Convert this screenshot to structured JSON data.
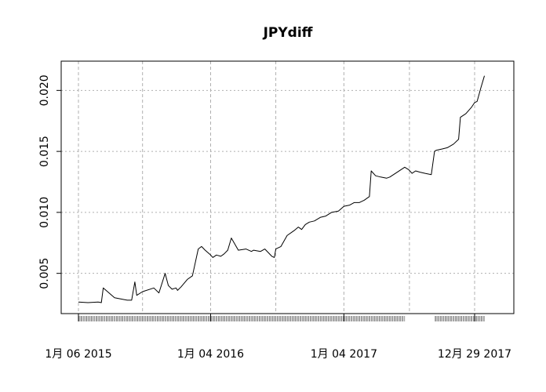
{
  "chart_data": {
    "type": "line",
    "title": "JPYdiff",
    "xlabel": "",
    "ylabel": "",
    "grid": true,
    "x_ticks": [
      {
        "label": "1月 06 2015",
        "date": "2015-01-06",
        "major": true
      },
      {
        "label": "",
        "date": "2015-07-01",
        "major": false
      },
      {
        "label": "1月 04 2016",
        "date": "2016-01-04",
        "major": true
      },
      {
        "label": "",
        "date": "2016-07-01",
        "major": false
      },
      {
        "label": "1月 04 2017",
        "date": "2017-01-04",
        "major": true
      },
      {
        "label": "",
        "date": "2017-07-03",
        "major": false
      },
      {
        "label": "12月 29 2017",
        "date": "2017-12-29",
        "major": true
      }
    ],
    "y_ticks": [
      0.005,
      0.01,
      0.015,
      0.02
    ],
    "y_tick_labels": [
      "0.005",
      "0.010",
      "0.015",
      "0.020"
    ],
    "xlim": [
      "2015-01-06",
      "2018-02-01"
    ],
    "ylim": [
      0.0017,
      0.0224
    ],
    "series": [
      {
        "line_color": "#000000",
        "x": [
          "2015-01-06",
          "2015-02-01",
          "2015-03-01",
          "2015-03-10",
          "2015-03-15",
          "2015-04-15",
          "2015-05-20",
          "2015-06-01",
          "2015-06-10",
          "2015-06-15",
          "2015-07-01",
          "2015-08-01",
          "2015-08-15",
          "2015-09-01",
          "2015-09-10",
          "2015-09-20",
          "2015-10-01",
          "2015-10-05",
          "2015-10-15",
          "2015-11-01",
          "2015-11-15",
          "2015-12-01",
          "2015-12-10",
          "2015-12-20",
          "2016-01-04",
          "2016-01-10",
          "2016-01-20",
          "2016-02-01",
          "2016-02-10",
          "2016-02-20",
          "2016-03-01",
          "2016-03-20",
          "2016-04-10",
          "2016-04-25",
          "2016-05-01",
          "2016-05-20",
          "2016-06-01",
          "2016-06-20",
          "2016-06-27",
          "2016-07-01",
          "2016-07-15",
          "2016-08-01",
          "2016-08-20",
          "2016-09-01",
          "2016-09-10",
          "2016-09-20",
          "2016-10-01",
          "2016-10-15",
          "2016-11-01",
          "2016-11-15",
          "2016-12-01",
          "2016-12-20",
          "2017-01-04",
          "2017-01-20",
          "2017-02-01",
          "2017-02-15",
          "2017-03-01",
          "2017-03-15",
          "2017-03-20",
          "2017-04-01",
          "2017-04-15",
          "2017-05-01",
          "2017-05-10",
          "2017-06-20",
          "2017-07-01",
          "2017-07-10",
          "2017-07-20",
          "2017-08-01",
          "2017-08-15",
          "2017-09-01",
          "2017-09-10",
          "2017-09-15",
          "2017-10-01",
          "2017-10-15",
          "2017-11-01",
          "2017-11-15",
          "2017-11-20",
          "2017-12-05",
          "2017-12-20",
          "2017-12-29",
          "2018-01-05",
          "2018-01-15",
          "2018-01-25"
        ],
        "values": [
          0.00265,
          0.0026,
          0.00265,
          0.0026,
          0.0038,
          0.003,
          0.0028,
          0.0028,
          0.0043,
          0.0032,
          0.0035,
          0.0038,
          0.0034,
          0.005,
          0.004,
          0.0037,
          0.0038,
          0.0036,
          0.0039,
          0.0045,
          0.0048,
          0.007,
          0.0072,
          0.0069,
          0.0065,
          0.0063,
          0.0065,
          0.0064,
          0.0066,
          0.0069,
          0.0079,
          0.0069,
          0.007,
          0.0068,
          0.0069,
          0.0068,
          0.007,
          0.0064,
          0.0063,
          0.007,
          0.0072,
          0.0081,
          0.0085,
          0.0088,
          0.0086,
          0.009,
          0.0092,
          0.0093,
          0.0096,
          0.0097,
          0.01,
          0.0101,
          0.0105,
          0.0106,
          0.0108,
          0.0108,
          0.011,
          0.0113,
          0.0134,
          0.013,
          0.0129,
          0.0128,
          0.0129,
          0.0137,
          0.0135,
          0.0132,
          0.0134,
          0.0133,
          0.0132,
          0.0131,
          0.015,
          0.0151,
          0.0152,
          0.0153,
          0.0156,
          0.016,
          0.0178,
          0.0181,
          0.0186,
          0.019,
          0.0191,
          0.0202,
          0.0212
        ]
      }
    ]
  }
}
